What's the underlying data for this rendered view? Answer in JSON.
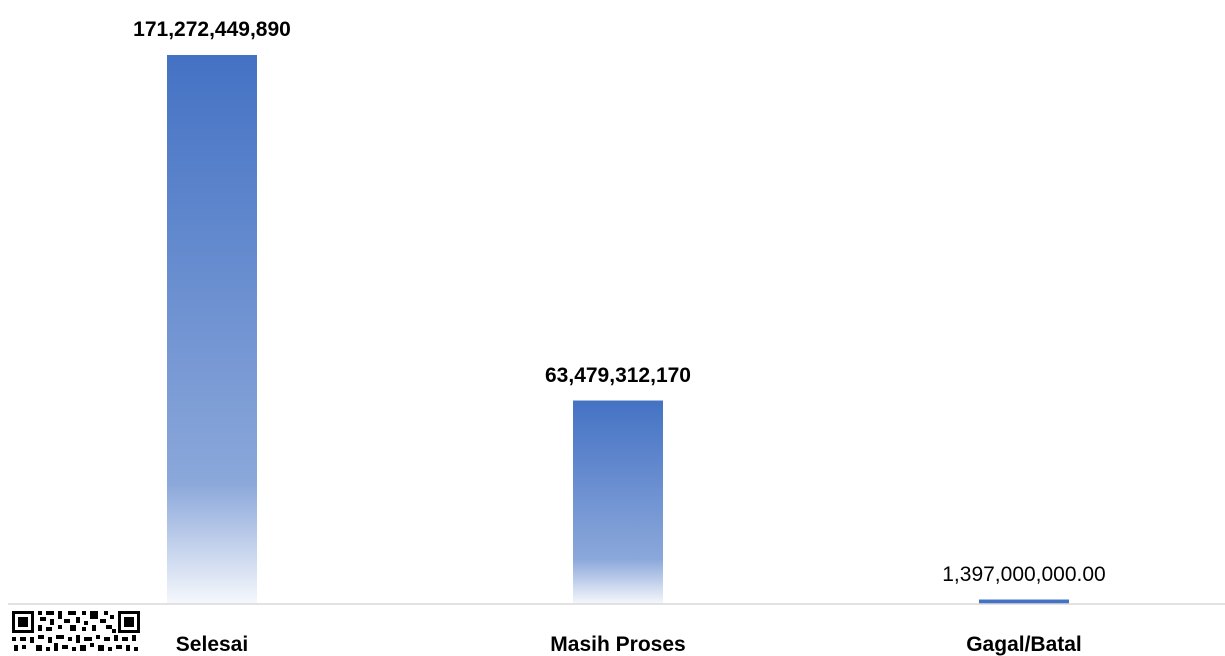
{
  "chart_data": {
    "type": "bar",
    "categories": [
      "Selesai",
      "Masih Proses",
      "Gagal/Batal"
    ],
    "values": [
      171272449890,
      63479312170,
      1397000000
    ],
    "value_labels": [
      "171,272,449,890",
      "63,479,312,170",
      "1,397,000,000.00"
    ],
    "value_label_bold": [
      true,
      true,
      false
    ],
    "ylim": [
      0,
      171272449890
    ],
    "grid": false,
    "legend": "none",
    "bar_color": "#4472C4"
  }
}
